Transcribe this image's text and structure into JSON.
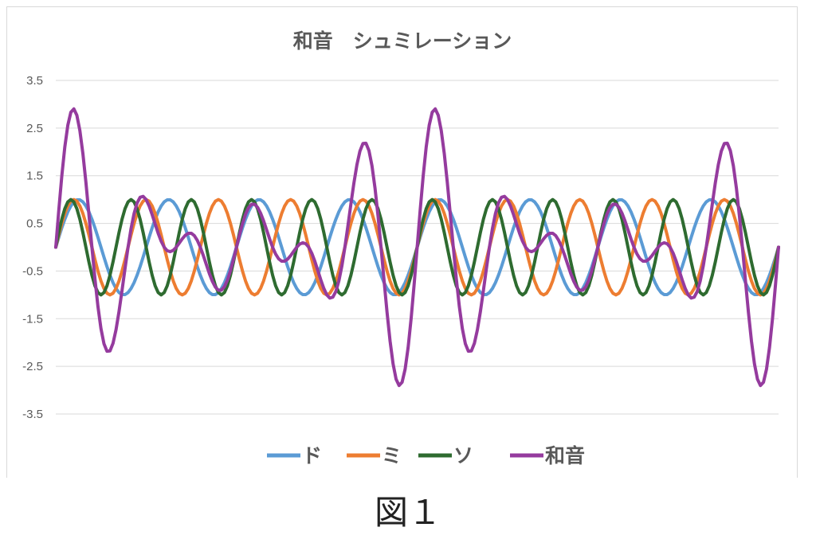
{
  "chart_data": {
    "type": "line",
    "title": "和音　シュミレーション",
    "xlabel": "",
    "ylabel": "",
    "ylim": [
      -3.5,
      3.5
    ],
    "yticks": [
      3.5,
      2.5,
      1.5,
      0.5,
      -0.5,
      -1.5,
      -2.5,
      -3.5
    ],
    "ytick_labels": [
      "3.5",
      "2.5",
      "1.5",
      "0.5",
      "-0.5",
      "-1.5",
      "-2.5",
      "-3.5"
    ],
    "grid": "horizontal",
    "legend_position": "bottom",
    "x_count": 241,
    "series": [
      {
        "name": "ド",
        "color": "#5B9BD5",
        "cycles": 8,
        "amplitude": 1
      },
      {
        "name": "ミ",
        "color": "#ED7D31",
        "cycles": 10,
        "amplitude": 1
      },
      {
        "name": "ソ",
        "color": "#2E6B30",
        "cycles": 12,
        "amplitude": 1
      },
      {
        "name": "和音",
        "color": "#953B9E",
        "sum_of": [
          "ド",
          "ミ",
          "ソ"
        ]
      }
    ]
  },
  "caption": "図１"
}
